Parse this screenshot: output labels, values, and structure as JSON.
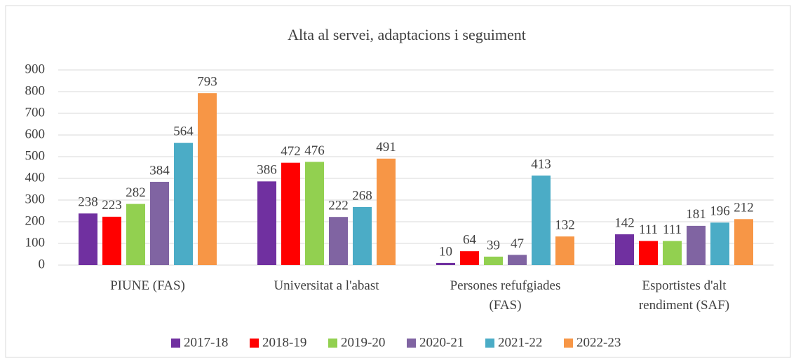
{
  "chart_data": {
    "type": "bar",
    "title": "Alta al servei, adaptacions i seguiment",
    "categories": [
      "PIUNE (FAS)",
      "Universitat a l'abast",
      "Persones refufgiades (FAS)",
      "Esportistes d'alt rendiment (SAF)"
    ],
    "series": [
      {
        "name": "2017-18",
        "color": "#7030a0",
        "values": [
          238,
          386,
          10,
          142
        ]
      },
      {
        "name": "2018-19",
        "color": "#ff0000",
        "values": [
          223,
          472,
          64,
          111
        ]
      },
      {
        "name": "2019-20",
        "color": "#92d050",
        "values": [
          282,
          476,
          39,
          111
        ]
      },
      {
        "name": "2020-21",
        "color": "#8064a2",
        "values": [
          384,
          222,
          47,
          181
        ]
      },
      {
        "name": "2021-22",
        "color": "#4bacc6",
        "values": [
          564,
          268,
          413,
          196
        ]
      },
      {
        "name": "2022-23",
        "color": "#f79646",
        "values": [
          793,
          491,
          132,
          212
        ]
      }
    ],
    "ylim": [
      0,
      900
    ],
    "yticks": [
      0,
      100,
      200,
      300,
      400,
      500,
      600,
      700,
      800,
      900
    ],
    "grid": true,
    "legend": "bottom"
  }
}
